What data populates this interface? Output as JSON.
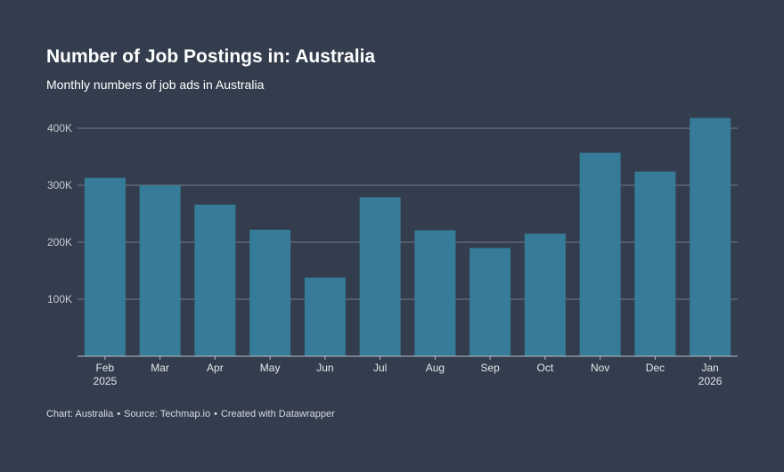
{
  "chart_data": {
    "type": "bar",
    "title": "Number of Job Postings in: Australia",
    "subtitle": "Monthly numbers of job ads in Australia",
    "categories": [
      "Feb",
      "Mar",
      "Apr",
      "May",
      "Jun",
      "Jul",
      "Aug",
      "Sep",
      "Oct",
      "Nov",
      "Dec",
      "Jan"
    ],
    "category_sublabels": [
      "2025",
      "",
      "",
      "",
      "",
      "",
      "",
      "",
      "",
      "",
      "",
      "2026"
    ],
    "values": [
      313000,
      300000,
      266000,
      222000,
      138000,
      279000,
      221000,
      190000,
      215000,
      357000,
      324000,
      418000
    ],
    "ylim": [
      0,
      400000
    ],
    "yticks": [
      100000,
      200000,
      300000,
      400000
    ],
    "ytick_labels": [
      "100K",
      "200K",
      "300K",
      "400K"
    ],
    "xlabel": "",
    "ylabel": "",
    "grid": true,
    "bar_color": "#367b97",
    "footer": {
      "chart": "Chart: Australia",
      "source": "Source: Techmap.io",
      "created": "Created with Datawrapper",
      "separator": "•"
    }
  }
}
